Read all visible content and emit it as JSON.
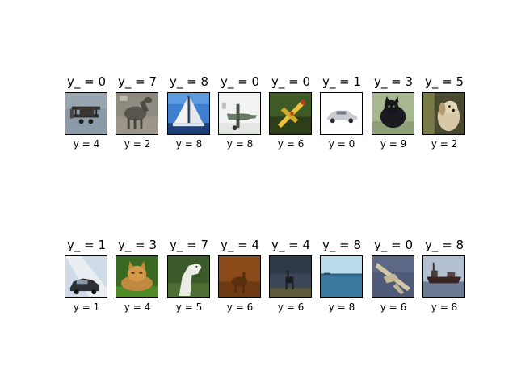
{
  "rows": [
    [
      {
        "title": "y_ = 0",
        "xlabel": "y = 4",
        "icon": "biplane-photo"
      },
      {
        "title": "y_ = 7",
        "xlabel": "y = 2",
        "icon": "horse-photo"
      },
      {
        "title": "y_ = 8",
        "xlabel": "y = 8",
        "icon": "sailboat-photo"
      },
      {
        "title": "y_ = 0",
        "xlabel": "y = 8",
        "icon": "airplane-photo"
      },
      {
        "title": "y_ = 0",
        "xlabel": "y = 6",
        "icon": "yellow-plane-photo"
      },
      {
        "title": "y_ = 1",
        "xlabel": "y = 0",
        "icon": "car-photo"
      },
      {
        "title": "y_ = 3",
        "xlabel": "y = 9",
        "icon": "black-cat-photo"
      },
      {
        "title": "y_ = 5",
        "xlabel": "y = 2",
        "icon": "dog-photo"
      }
    ],
    [
      {
        "title": "y_ = 1",
        "xlabel": "y = 1",
        "icon": "car-photo"
      },
      {
        "title": "y_ = 3",
        "xlabel": "y = 4",
        "icon": "orange-cat-photo"
      },
      {
        "title": "y_ = 7",
        "xlabel": "y = 5",
        "icon": "white-horse-photo"
      },
      {
        "title": "y_ = 4",
        "xlabel": "y = 6",
        "icon": "deer-photo"
      },
      {
        "title": "y_ = 4",
        "xlabel": "y = 6",
        "icon": "deer-dark-photo"
      },
      {
        "title": "y_ = 8",
        "xlabel": "y = 8",
        "icon": "sea-ship-photo"
      },
      {
        "title": "y_ = 0",
        "xlabel": "y = 6",
        "icon": "jet-photo"
      },
      {
        "title": "y_ = 8",
        "xlabel": "y = 8",
        "icon": "ship-photo"
      }
    ]
  ]
}
